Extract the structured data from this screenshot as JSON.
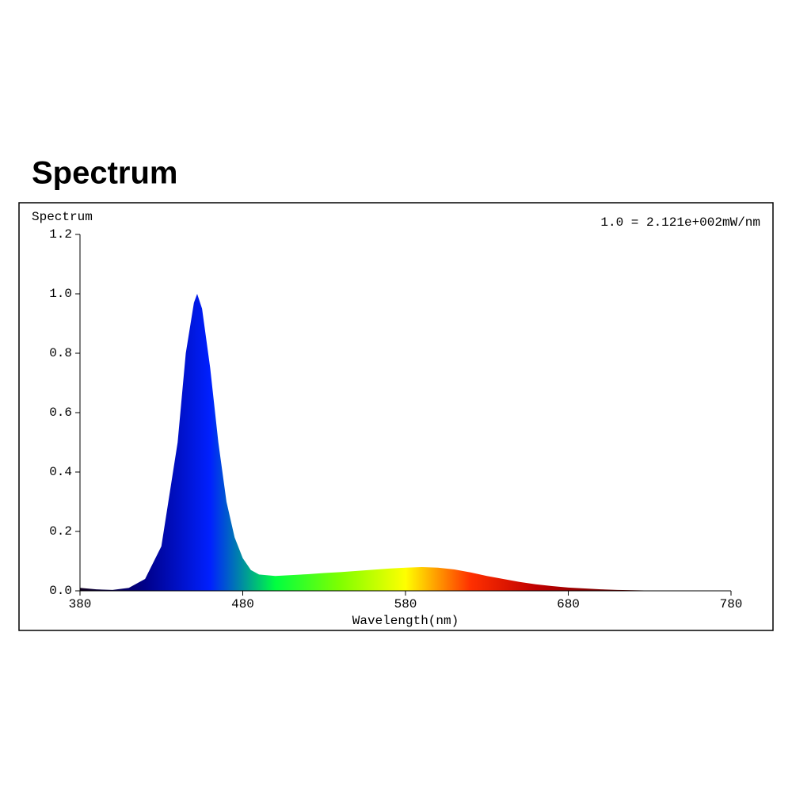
{
  "page_title": "Spectrum",
  "chart_data": {
    "type": "area",
    "y_label": "Spectrum",
    "annotation": "1.0 = 2.121e+002mW/nm",
    "x_label": "Wavelength(nm)",
    "x": [
      380,
      390,
      400,
      410,
      420,
      430,
      440,
      445,
      450,
      452,
      455,
      460,
      465,
      470,
      475,
      480,
      485,
      490,
      500,
      510,
      520,
      530,
      540,
      550,
      560,
      570,
      580,
      590,
      600,
      610,
      620,
      630,
      640,
      650,
      660,
      670,
      680,
      690,
      700,
      710,
      720,
      730,
      740,
      750,
      760,
      770,
      780
    ],
    "values": [
      0.01,
      0.005,
      0.003,
      0.01,
      0.04,
      0.15,
      0.5,
      0.8,
      0.97,
      1.0,
      0.95,
      0.75,
      0.5,
      0.3,
      0.18,
      0.11,
      0.07,
      0.055,
      0.05,
      0.053,
      0.056,
      0.06,
      0.063,
      0.067,
      0.071,
      0.075,
      0.078,
      0.08,
      0.078,
      0.072,
      0.062,
      0.05,
      0.04,
      0.03,
      0.022,
      0.016,
      0.011,
      0.008,
      0.005,
      0.003,
      0.002,
      0.001,
      0.001,
      0,
      0,
      0,
      0
    ],
    "fill_colors": [
      "#100020",
      "#00008a",
      "#0020ff",
      "#00ff40",
      "#80ff00",
      "#ffff00",
      "#ff3000",
      "#c00000",
      "#800000",
      "#500000",
      "#300000"
    ],
    "xlim": [
      380,
      780
    ],
    "ylim": [
      0,
      1.2
    ],
    "xticks": [
      380,
      480,
      580,
      680,
      780
    ],
    "yticks": [
      {
        "value": 0,
        "label": "0.0"
      },
      0.2,
      0.4,
      0.6,
      0.8,
      {
        "value": 1,
        "label": "1.0"
      },
      1.2
    ]
  }
}
